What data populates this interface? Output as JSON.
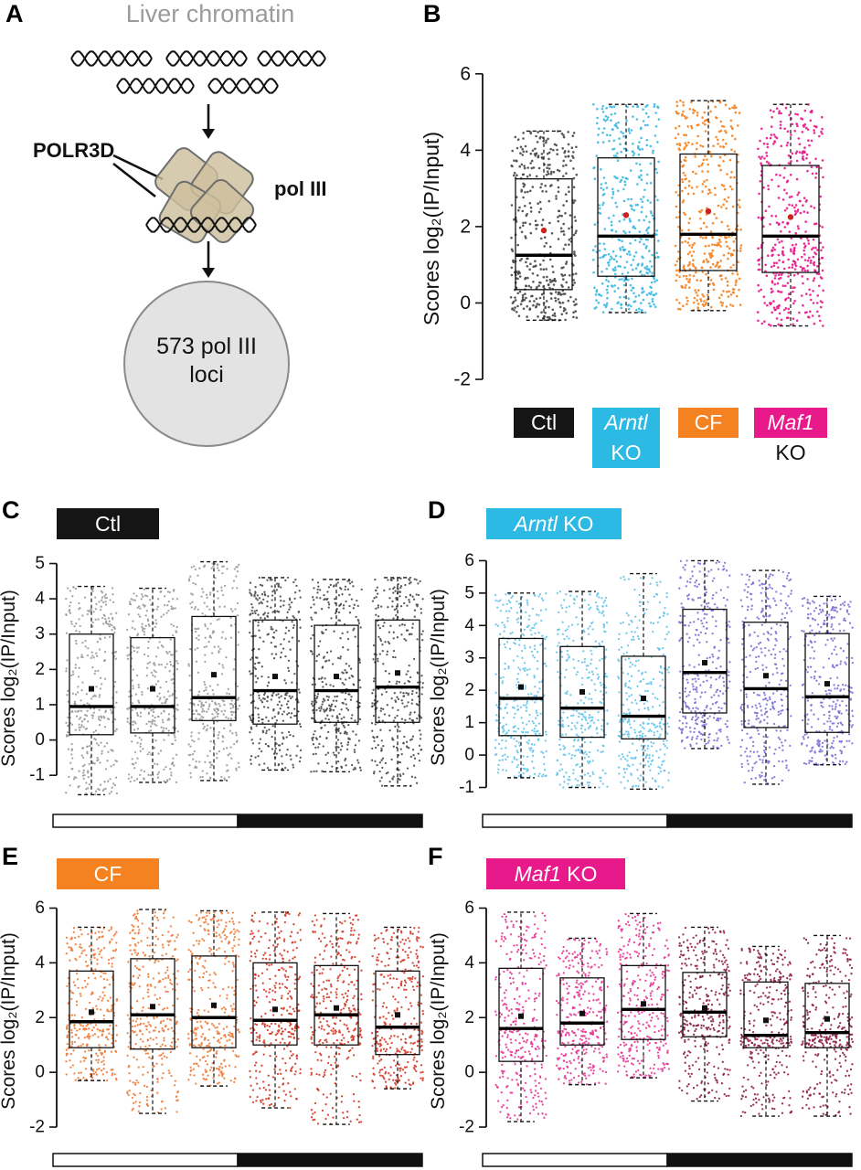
{
  "figure": {
    "panel_labels": [
      "A",
      "B",
      "C",
      "D",
      "E",
      "F"
    ],
    "panel_a": {
      "title": "Liver chromatin",
      "polr3d_label": "POLR3D",
      "pol3_label": "pol III",
      "loci_line1": "573 pol III",
      "loci_line2": "loci"
    }
  },
  "chart_data": [
    {
      "panel": "B",
      "type": "boxplot_jitter",
      "ylabel": "Scores log₂(IP/Input)",
      "yticks": [
        -2,
        0,
        2,
        4,
        6
      ],
      "grid": false,
      "mean_marker": "red_dot",
      "mean_color": "#cf2020",
      "n_per_group": 573,
      "groups": [
        {
          "label": "Ctl",
          "color": "#474747",
          "whisker_low": -0.45,
          "q1": 0.35,
          "median": 1.25,
          "q3": 3.25,
          "whisker_high": 4.5,
          "mean": 1.9
        },
        {
          "label": "Arntl KO",
          "color": "#3fb8e2",
          "whisker_low": -0.25,
          "q1": 0.7,
          "median": 1.75,
          "q3": 3.8,
          "whisker_high": 5.2,
          "mean": 2.3
        },
        {
          "label": "CF",
          "color": "#f58220",
          "whisker_low": -0.2,
          "q1": 0.85,
          "median": 1.8,
          "q3": 3.9,
          "whisker_high": 5.3,
          "mean": 2.4
        },
        {
          "label": "Maf1 KO",
          "color": "#e8198b",
          "whisker_low": -0.6,
          "q1": 0.8,
          "median": 1.75,
          "q3": 3.6,
          "whisker_high": 5.2,
          "mean": 2.25
        }
      ],
      "legend": [
        {
          "lines": [
            {
              "text": "Ctl",
              "italic": false,
              "bg": "#151515",
              "color": "#ffffff"
            }
          ]
        },
        {
          "lines": [
            {
              "text": "Arntl",
              "italic": true,
              "bg": "#2cb9e4",
              "color": "#ffffff"
            },
            {
              "text": "KO",
              "italic": false,
              "bg": "#2cb9e4",
              "color": "#ffffff"
            }
          ]
        },
        {
          "lines": [
            {
              "text": "CF",
              "italic": false,
              "bg": "#f58220",
              "color": "#ffffff"
            }
          ]
        },
        {
          "lines": [
            {
              "text": "Maf1",
              "italic": true,
              "bg": "#e8198b",
              "color": "#ffffff"
            },
            {
              "text": "KO",
              "italic": false,
              "bg": "transparent",
              "color": "#111111"
            }
          ]
        }
      ]
    },
    {
      "panel": "C",
      "type": "boxplot_jitter",
      "chip": {
        "italic_text": "",
        "text": "Ctl",
        "bg": "#151515",
        "fg": "#ffffff"
      },
      "ylabel": "Scores log₂(IP/Input)",
      "yticks": [
        -1,
        0,
        1,
        2,
        3,
        4,
        5
      ],
      "mean_marker": "black_square",
      "mean_color": "#111111",
      "phase_bar": {
        "left_fill": "#ffffff",
        "right_fill": "#111111",
        "split": 0.5
      },
      "groups": [
        {
          "color": "#9b9b9b",
          "whisker_low": -1.55,
          "q1": 0.15,
          "median": 0.95,
          "q3": 3.0,
          "whisker_high": 4.35,
          "mean": 1.45
        },
        {
          "color": "#9b9b9b",
          "whisker_low": -1.2,
          "q1": 0.2,
          "median": 0.95,
          "q3": 2.9,
          "whisker_high": 4.3,
          "mean": 1.45
        },
        {
          "color": "#9b9b9b",
          "whisker_low": -1.15,
          "q1": 0.55,
          "median": 1.2,
          "q3": 3.5,
          "whisker_high": 5.05,
          "mean": 1.85
        },
        {
          "color": "#4a4a4a",
          "whisker_low": -0.85,
          "q1": 0.45,
          "median": 1.4,
          "q3": 3.4,
          "whisker_high": 4.6,
          "mean": 1.8
        },
        {
          "color": "#4a4a4a",
          "whisker_low": -0.9,
          "q1": 0.5,
          "median": 1.4,
          "q3": 3.25,
          "whisker_high": 4.55,
          "mean": 1.8
        },
        {
          "color": "#4a4a4a",
          "whisker_low": -1.3,
          "q1": 0.5,
          "median": 1.5,
          "q3": 3.4,
          "whisker_high": 4.6,
          "mean": 1.9
        }
      ]
    },
    {
      "panel": "D",
      "type": "boxplot_jitter",
      "chip": {
        "italic_text": "Arntl",
        "text": " KO",
        "bg": "#2cb9e4",
        "fg": "#ffffff"
      },
      "ylabel": "Scores log₂(IP/Input)",
      "yticks": [
        -1,
        0,
        1,
        2,
        3,
        4,
        5,
        6
      ],
      "mean_marker": "black_square",
      "mean_color": "#111111",
      "phase_bar": {
        "left_fill": "#ffffff",
        "right_fill": "#111111",
        "split": 0.5
      },
      "groups": [
        {
          "color": "#66c4ea",
          "whisker_low": -0.7,
          "q1": 0.6,
          "median": 1.75,
          "q3": 3.6,
          "whisker_high": 5.0,
          "mean": 2.1
        },
        {
          "color": "#66c4ea",
          "whisker_low": -1.0,
          "q1": 0.55,
          "median": 1.45,
          "q3": 3.35,
          "whisker_high": 5.05,
          "mean": 1.95
        },
        {
          "color": "#66c4ea",
          "whisker_low": -1.05,
          "q1": 0.5,
          "median": 1.2,
          "q3": 3.05,
          "whisker_high": 5.6,
          "mean": 1.75
        },
        {
          "color": "#7b72d6",
          "whisker_low": 0.2,
          "q1": 1.3,
          "median": 2.55,
          "q3": 4.5,
          "whisker_high": 6.0,
          "mean": 2.85
        },
        {
          "color": "#7b72d6",
          "whisker_low": -0.9,
          "q1": 0.85,
          "median": 2.05,
          "q3": 4.1,
          "whisker_high": 5.7,
          "mean": 2.45
        },
        {
          "color": "#7b72d6",
          "whisker_low": -0.3,
          "q1": 0.7,
          "median": 1.8,
          "q3": 3.75,
          "whisker_high": 4.9,
          "mean": 2.2
        }
      ]
    },
    {
      "panel": "E",
      "type": "boxplot_jitter",
      "chip": {
        "italic_text": "",
        "text": "CF",
        "bg": "#f58220",
        "fg": "#ffffff"
      },
      "ylabel": "Scores log₂(IP/Input)",
      "yticks": [
        -2,
        0,
        2,
        4,
        6
      ],
      "mean_marker": "black_square",
      "mean_color": "#111111",
      "phase_bar": {
        "left_fill": "#ffffff",
        "right_fill": "#111111",
        "split": 0.5
      },
      "groups": [
        {
          "color": "#ef7c3a",
          "whisker_low": -0.3,
          "q1": 0.9,
          "median": 1.85,
          "q3": 3.7,
          "whisker_high": 5.3,
          "mean": 2.2
        },
        {
          "color": "#ef7c3a",
          "whisker_low": -1.5,
          "q1": 0.85,
          "median": 2.1,
          "q3": 4.15,
          "whisker_high": 5.95,
          "mean": 2.4
        },
        {
          "color": "#ef7c3a",
          "whisker_low": -0.5,
          "q1": 0.9,
          "median": 2.0,
          "q3": 4.25,
          "whisker_high": 5.9,
          "mean": 2.45
        },
        {
          "color": "#d33b28",
          "whisker_low": -1.3,
          "q1": 1.0,
          "median": 1.9,
          "q3": 4.0,
          "whisker_high": 5.85,
          "mean": 2.3
        },
        {
          "color": "#d33b28",
          "whisker_low": -1.9,
          "q1": 1.0,
          "median": 2.1,
          "q3": 3.9,
          "whisker_high": 5.8,
          "mean": 2.35
        },
        {
          "color": "#d33b28",
          "whisker_low": -0.6,
          "q1": 0.65,
          "median": 1.65,
          "q3": 3.7,
          "whisker_high": 5.3,
          "mean": 2.1
        }
      ]
    },
    {
      "panel": "F",
      "type": "boxplot_jitter",
      "chip": {
        "italic_text": "Maf1",
        "text": " KO",
        "bg": "#e8198b",
        "fg": "#ffffff"
      },
      "ylabel": "Scores log₂(IP/Input)",
      "yticks": [
        -2,
        0,
        2,
        4,
        6
      ],
      "mean_marker": "black_square",
      "mean_color": "#111111",
      "phase_bar": {
        "left_fill": "#ffffff",
        "right_fill": "#111111",
        "split": 0.5
      },
      "groups": [
        {
          "color": "#e53a96",
          "whisker_low": -1.8,
          "q1": 0.4,
          "median": 1.6,
          "q3": 3.8,
          "whisker_high": 5.85,
          "mean": 2.05
        },
        {
          "color": "#e53a96",
          "whisker_low": -0.45,
          "q1": 1.0,
          "median": 1.8,
          "q3": 3.45,
          "whisker_high": 4.9,
          "mean": 2.15
        },
        {
          "color": "#e53a96",
          "whisker_low": -0.2,
          "q1": 1.2,
          "median": 2.3,
          "q3": 3.9,
          "whisker_high": 5.8,
          "mean": 2.5
        },
        {
          "color": "#8f1f45",
          "whisker_low": -1.05,
          "q1": 1.3,
          "median": 2.2,
          "q3": 3.65,
          "whisker_high": 5.3,
          "mean": 2.35
        },
        {
          "color": "#8f1f45",
          "whisker_low": -1.6,
          "q1": 0.9,
          "median": 1.35,
          "q3": 3.3,
          "whisker_high": 4.6,
          "mean": 1.9
        },
        {
          "color": "#8f1f45",
          "whisker_low": -1.6,
          "q1": 0.9,
          "median": 1.45,
          "q3": 3.25,
          "whisker_high": 5.0,
          "mean": 1.95
        }
      ]
    }
  ]
}
